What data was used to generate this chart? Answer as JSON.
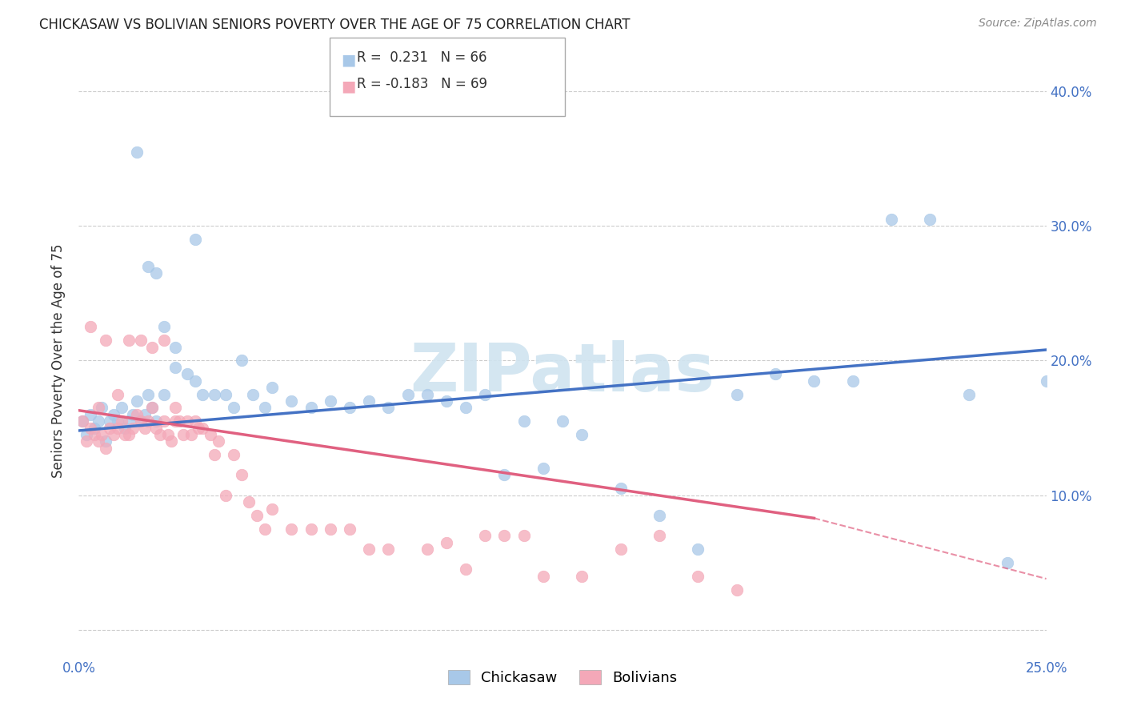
{
  "title": "CHICKASAW VS BOLIVIAN SENIORS POVERTY OVER THE AGE OF 75 CORRELATION CHART",
  "source": "Source: ZipAtlas.com",
  "ylabel": "Seniors Poverty Over the Age of 75",
  "xmin": 0.0,
  "xmax": 0.25,
  "ymin": -0.02,
  "ymax": 0.42,
  "yticks": [
    0.0,
    0.1,
    0.2,
    0.3,
    0.4
  ],
  "ytick_labels_right": [
    "",
    "10.0%",
    "20.0%",
    "30.0%",
    "40.0%"
  ],
  "xticks": [
    0.0,
    0.05,
    0.1,
    0.15,
    0.2,
    0.25
  ],
  "xtick_labels": [
    "0.0%",
    "",
    "",
    "",
    "",
    "25.0%"
  ],
  "chickasaw_R": 0.231,
  "chickasaw_N": 66,
  "bolivian_R": -0.183,
  "bolivian_N": 69,
  "chickasaw_color": "#a8c8e8",
  "bolivian_color": "#f4a8b8",
  "trend_chickasaw_color": "#4472c4",
  "trend_bolivian_color": "#e06080",
  "watermark_text": "ZIPatlas",
  "watermark_color": "#d0e4f0",
  "chickasaw_x": [
    0.001,
    0.002,
    0.003,
    0.004,
    0.005,
    0.006,
    0.007,
    0.008,
    0.009,
    0.01,
    0.011,
    0.012,
    0.013,
    0.014,
    0.015,
    0.016,
    0.017,
    0.018,
    0.019,
    0.02,
    0.022,
    0.025,
    0.028,
    0.03,
    0.032,
    0.035,
    0.038,
    0.04,
    0.042,
    0.045,
    0.048,
    0.05,
    0.055,
    0.06,
    0.065,
    0.07,
    0.075,
    0.08,
    0.085,
    0.09,
    0.095,
    0.1,
    0.105,
    0.11,
    0.115,
    0.12,
    0.125,
    0.13,
    0.14,
    0.15,
    0.16,
    0.17,
    0.18,
    0.19,
    0.2,
    0.21,
    0.22,
    0.23,
    0.24,
    0.25,
    0.015,
    0.02,
    0.025,
    0.03,
    0.018,
    0.022
  ],
  "chickasaw_y": [
    0.155,
    0.145,
    0.16,
    0.15,
    0.155,
    0.165,
    0.14,
    0.155,
    0.16,
    0.155,
    0.165,
    0.15,
    0.155,
    0.16,
    0.17,
    0.155,
    0.16,
    0.175,
    0.165,
    0.155,
    0.175,
    0.195,
    0.19,
    0.185,
    0.175,
    0.175,
    0.175,
    0.165,
    0.2,
    0.175,
    0.165,
    0.18,
    0.17,
    0.165,
    0.17,
    0.165,
    0.17,
    0.165,
    0.175,
    0.175,
    0.17,
    0.165,
    0.175,
    0.115,
    0.155,
    0.12,
    0.155,
    0.145,
    0.105,
    0.085,
    0.06,
    0.175,
    0.19,
    0.185,
    0.185,
    0.305,
    0.305,
    0.175,
    0.05,
    0.185,
    0.355,
    0.265,
    0.21,
    0.29,
    0.27,
    0.225
  ],
  "bolivian_x": [
    0.001,
    0.002,
    0.003,
    0.004,
    0.005,
    0.006,
    0.007,
    0.008,
    0.009,
    0.01,
    0.011,
    0.012,
    0.013,
    0.014,
    0.015,
    0.016,
    0.017,
    0.018,
    0.019,
    0.02,
    0.021,
    0.022,
    0.023,
    0.024,
    0.025,
    0.026,
    0.027,
    0.028,
    0.029,
    0.03,
    0.031,
    0.032,
    0.034,
    0.035,
    0.036,
    0.038,
    0.04,
    0.042,
    0.044,
    0.046,
    0.048,
    0.05,
    0.055,
    0.06,
    0.065,
    0.07,
    0.075,
    0.08,
    0.09,
    0.095,
    0.1,
    0.105,
    0.11,
    0.115,
    0.12,
    0.13,
    0.14,
    0.15,
    0.16,
    0.17,
    0.003,
    0.005,
    0.007,
    0.01,
    0.013,
    0.016,
    0.019,
    0.022,
    0.025
  ],
  "bolivian_y": [
    0.155,
    0.14,
    0.15,
    0.145,
    0.14,
    0.145,
    0.135,
    0.15,
    0.145,
    0.15,
    0.155,
    0.145,
    0.145,
    0.15,
    0.16,
    0.155,
    0.15,
    0.155,
    0.165,
    0.15,
    0.145,
    0.155,
    0.145,
    0.14,
    0.155,
    0.155,
    0.145,
    0.155,
    0.145,
    0.155,
    0.15,
    0.15,
    0.145,
    0.13,
    0.14,
    0.1,
    0.13,
    0.115,
    0.095,
    0.085,
    0.075,
    0.09,
    0.075,
    0.075,
    0.075,
    0.075,
    0.06,
    0.06,
    0.06,
    0.065,
    0.045,
    0.07,
    0.07,
    0.07,
    0.04,
    0.04,
    0.06,
    0.07,
    0.04,
    0.03,
    0.225,
    0.165,
    0.215,
    0.175,
    0.215,
    0.215,
    0.21,
    0.215,
    0.165
  ],
  "trend_chickasaw_x_start": 0.0,
  "trend_chickasaw_x_end": 0.25,
  "trend_chickasaw_y_start": 0.148,
  "trend_chickasaw_y_end": 0.208,
  "trend_bolivian_x_start": 0.0,
  "trend_bolivian_x_end": 0.19,
  "trend_bolivian_y_start": 0.163,
  "trend_bolivian_y_end": 0.083,
  "trend_bolivian_dash_x_end": 0.25,
  "trend_bolivian_dash_y_end": 0.038
}
